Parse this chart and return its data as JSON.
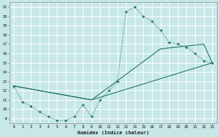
{
  "xlabel": "Humidex (Indice chaleur)",
  "bg_color": "#c8e8e8",
  "line_color": "#1a7060",
  "grid_color": "#b8d8d8",
  "xlim": [
    -0.5,
    23.5
  ],
  "ylim": [
    8.5,
    21.5
  ],
  "xticks": [
    0,
    1,
    2,
    3,
    4,
    5,
    6,
    7,
    8,
    9,
    10,
    11,
    12,
    13,
    14,
    15,
    16,
    17,
    18,
    19,
    20,
    21,
    22,
    23
  ],
  "yticks": [
    9,
    10,
    11,
    12,
    13,
    14,
    15,
    16,
    17,
    18,
    19,
    20,
    21
  ],
  "curve1_x": [
    0,
    1,
    2,
    3,
    4,
    5,
    6,
    7,
    8,
    9,
    10,
    11,
    12,
    13,
    14,
    15,
    16,
    17,
    18,
    19,
    20,
    21,
    22,
    23
  ],
  "curve1_y": [
    12.5,
    10.8,
    10.3,
    9.7,
    9.2,
    8.8,
    8.8,
    9.2,
    10.5,
    9.2,
    11.0,
    12.0,
    13.0,
    20.5,
    21.0,
    20.0,
    19.5,
    18.5,
    17.2,
    17.0,
    16.7,
    16.0,
    15.2,
    15.0
  ],
  "curve2_x": [
    0,
    9,
    23
  ],
  "curve2_y": [
    12.5,
    11.0,
    15.0
  ],
  "curve3_x": [
    0,
    9,
    17,
    22,
    23
  ],
  "curve3_y": [
    12.5,
    11.0,
    16.5,
    17.0,
    15.0
  ]
}
